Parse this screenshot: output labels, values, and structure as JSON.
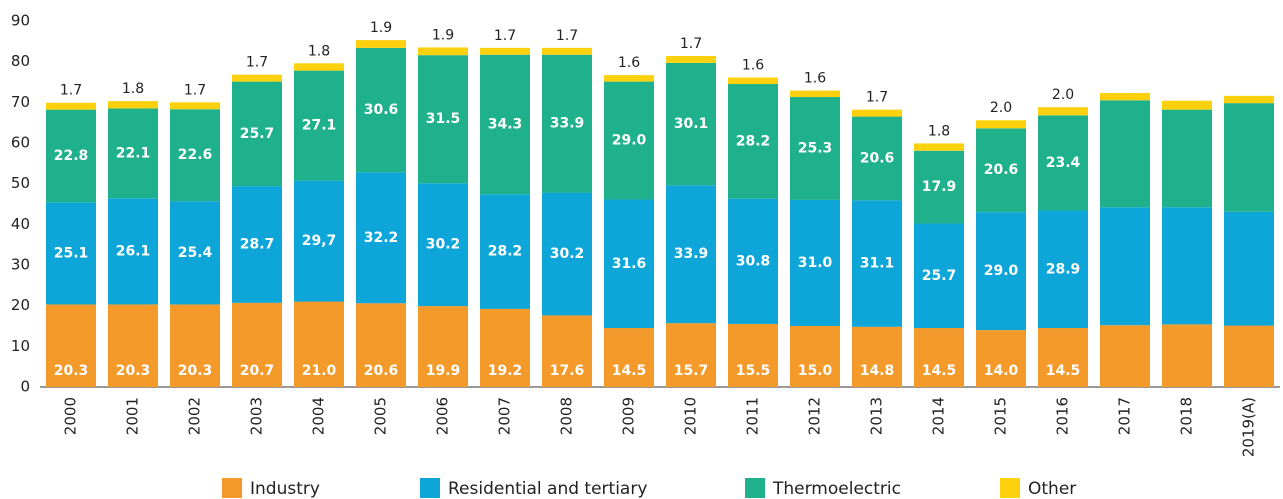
{
  "chart_data": {
    "type": "stacked_bar",
    "categories": [
      "2000",
      "2001",
      "2002",
      "2003",
      "2004",
      "2005",
      "2006",
      "2007",
      "2008",
      "2009",
      "2010",
      "2011",
      "2012",
      "2013",
      "2014",
      "2015",
      "2016",
      "2017",
      "2018",
      "2019(A)"
    ],
    "series": [
      {
        "name": "Industry",
        "color": "#f39a2b",
        "values": [
          20.3,
          20.3,
          20.3,
          20.7,
          21.0,
          20.6,
          19.9,
          19.2,
          17.6,
          14.5,
          15.7,
          15.5,
          15.0,
          14.8,
          14.5,
          14.0,
          14.5,
          15.2,
          15.4,
          15.1
        ],
        "value_labels": [
          "20.3",
          "20.3",
          "20.3",
          "20.7",
          "21.0",
          "20.6",
          "19.9",
          "19.2",
          "17.6",
          "14.5",
          "15.7",
          "15.5",
          "15.0",
          "14.8",
          "14.5",
          "14.0",
          "14.5",
          null,
          null,
          null
        ]
      },
      {
        "name": "Residential and tertiary",
        "color": "#0ea5d8",
        "values": [
          25.1,
          26.1,
          25.4,
          28.7,
          29.7,
          32.2,
          30.2,
          28.2,
          30.2,
          31.6,
          33.9,
          30.8,
          31.0,
          31.1,
          25.7,
          29.0,
          28.9,
          29.0,
          28.8,
          28.0
        ],
        "value_labels": [
          "25.1",
          "26.1",
          "25.4",
          "28.7",
          "29,7",
          "32.2",
          "30.2",
          "28.2",
          "30.2",
          "31.6",
          "33.9",
          "30.8",
          "31.0",
          "31.1",
          "25.7",
          "29.0",
          "28.9",
          null,
          null,
          null
        ]
      },
      {
        "name": "Thermoelectric",
        "color": "#1fb08c",
        "values": [
          22.8,
          22.1,
          22.6,
          25.7,
          27.1,
          30.6,
          31.5,
          34.3,
          33.9,
          29.0,
          30.1,
          28.2,
          25.3,
          20.6,
          17.9,
          20.6,
          23.4,
          26.3,
          24.0,
          26.7
        ],
        "value_labels": [
          "22.8",
          "22.1",
          "22.6",
          "25.7",
          "27.1",
          "30.6",
          "31.5",
          "34.3",
          "33.9",
          "29.0",
          "30.1",
          "28.2",
          "25.3",
          "20.6",
          "17.9",
          "20.6",
          "23.4",
          null,
          null,
          null
        ]
      },
      {
        "name": "Other",
        "color": "#fdd10d",
        "values": [
          1.7,
          1.8,
          1.7,
          1.7,
          1.8,
          1.9,
          1.9,
          1.7,
          1.7,
          1.6,
          1.7,
          1.6,
          1.6,
          1.7,
          1.8,
          2.0,
          2.0,
          1.8,
          2.2,
          1.8
        ],
        "value_labels": [
          "1.7",
          "1.8",
          "1.7",
          "1.7",
          "1.8",
          "1.9",
          "1.9",
          "1.7",
          "1.7",
          "1.6",
          "1.7",
          "1.6",
          "1.6",
          "1.7",
          "1.8",
          "2.0",
          "2.0",
          null,
          null,
          null
        ]
      }
    ],
    "ylim": [
      0,
      90
    ],
    "yticks": [
      0,
      10,
      20,
      30,
      40,
      50,
      60,
      70,
      80,
      90
    ]
  }
}
